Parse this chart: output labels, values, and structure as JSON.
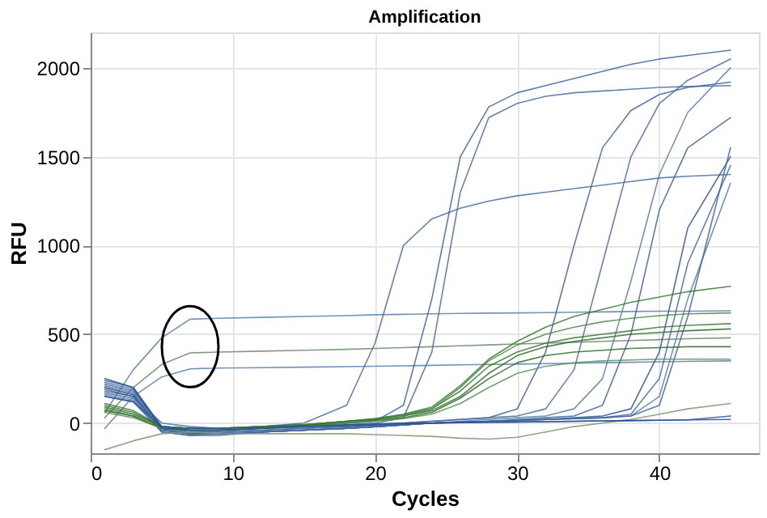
{
  "chart_data": {
    "type": "line",
    "title": "Amplification",
    "xlabel": "Cycles",
    "ylabel": "RFU",
    "x": [
      1,
      3,
      5,
      7,
      9,
      12,
      15,
      18,
      20,
      22,
      24,
      26,
      28,
      30,
      32,
      34,
      36,
      38,
      40,
      42,
      45
    ],
    "series": [
      {
        "color": "#5b7fa8",
        "values": [
          60,
          300,
          480,
          585,
          590,
          595,
          600,
          605,
          610,
          612,
          615,
          617,
          619,
          620,
          622,
          624,
          626,
          628,
          630,
          630,
          632
        ]
      },
      {
        "color": "#6a8a6a",
        "values": [
          30,
          200,
          330,
          395,
          400,
          405,
          410,
          415,
          420,
          425,
          430,
          435,
          440,
          445,
          450,
          455,
          460,
          465,
          470,
          475,
          480
        ]
      },
      {
        "color": "#5b7fa8",
        "values": [
          -30,
          150,
          260,
          305,
          310,
          312,
          315,
          318,
          320,
          322,
          325,
          328,
          330,
          332,
          335,
          337,
          340,
          342,
          345,
          347,
          350
        ]
      },
      {
        "color": "#4a6d9e",
        "values": [
          180,
          150,
          0,
          -20,
          -30,
          -20,
          0,
          100,
          450,
          1000,
          1150,
          1210,
          1250,
          1280,
          1300,
          1320,
          1340,
          1360,
          1380,
          1390,
          1400
        ]
      },
      {
        "color": "#3f65a0",
        "values": [
          220,
          180,
          -20,
          -40,
          -40,
          -30,
          -20,
          0,
          10,
          100,
          700,
          1500,
          1780,
          1860,
          1900,
          1940,
          1980,
          2020,
          2050,
          2070,
          2100
        ]
      },
      {
        "color": "#4a6d9e",
        "values": [
          200,
          160,
          -20,
          -40,
          -40,
          -30,
          -20,
          -10,
          0,
          30,
          400,
          1300,
          1720,
          1800,
          1840,
          1860,
          1870,
          1880,
          1890,
          1895,
          1900
        ]
      },
      {
        "color": "#3f65a0",
        "values": [
          240,
          200,
          -20,
          -50,
          -50,
          -40,
          -30,
          -20,
          -10,
          0,
          10,
          20,
          30,
          80,
          400,
          1000,
          1550,
          1760,
          1850,
          1890,
          1920
        ]
      },
      {
        "color": "#4a6d9e",
        "values": [
          230,
          190,
          -30,
          -50,
          -50,
          -40,
          -30,
          -20,
          -10,
          0,
          10,
          20,
          30,
          40,
          80,
          300,
          900,
          1500,
          1800,
          1930,
          2050
        ]
      },
      {
        "color": "#5b7fa8",
        "values": [
          210,
          170,
          -30,
          -60,
          -60,
          -50,
          -40,
          -30,
          -20,
          -10,
          0,
          10,
          20,
          30,
          40,
          80,
          250,
          800,
          1400,
          1750,
          2000
        ]
      },
      {
        "color": "#3f65a0",
        "values": [
          200,
          160,
          -40,
          -60,
          -60,
          -50,
          -40,
          -30,
          -20,
          -10,
          0,
          5,
          10,
          20,
          30,
          40,
          100,
          500,
          1200,
          1550,
          1720
        ]
      },
      {
        "color": "#2f5597",
        "values": [
          190,
          150,
          -40,
          -60,
          -60,
          -50,
          -40,
          -30,
          -20,
          -10,
          0,
          5,
          10,
          15,
          20,
          30,
          40,
          80,
          400,
          1100,
          1500
        ]
      },
      {
        "color": "#4a6d9e",
        "values": [
          170,
          140,
          -40,
          -60,
          -60,
          -50,
          -40,
          -30,
          -20,
          -10,
          0,
          5,
          10,
          15,
          20,
          25,
          30,
          50,
          250,
          900,
          1450
        ]
      },
      {
        "color": "#5b7fa8",
        "values": [
          160,
          130,
          -50,
          -70,
          -60,
          -50,
          -40,
          -30,
          -20,
          -10,
          0,
          5,
          10,
          15,
          20,
          25,
          30,
          40,
          150,
          700,
          1350
        ]
      },
      {
        "color": "#3f65a0",
        "values": [
          150,
          120,
          -50,
          -70,
          -70,
          -50,
          -40,
          -30,
          -20,
          -10,
          0,
          5,
          10,
          15,
          20,
          25,
          30,
          40,
          100,
          600,
          1550
        ]
      },
      {
        "color": "#3a7a35",
        "values": [
          100,
          60,
          -20,
          -30,
          -30,
          -20,
          -10,
          10,
          25,
          45,
          80,
          180,
          320,
          400,
          450,
          480,
          500,
          520,
          540,
          550,
          560
        ]
      },
      {
        "color": "#2f6b2c",
        "values": [
          90,
          50,
          -20,
          -30,
          -30,
          -20,
          -10,
          10,
          20,
          40,
          70,
          150,
          280,
          380,
          430,
          460,
          480,
          500,
          510,
          520,
          530
        ]
      },
      {
        "color": "#4d8a45",
        "values": [
          80,
          40,
          -30,
          -40,
          -40,
          -30,
          -15,
          5,
          20,
          40,
          80,
          200,
          350,
          440,
          500,
          540,
          570,
          590,
          605,
          615,
          620
        ]
      },
      {
        "color": "#3a7a35",
        "values": [
          110,
          70,
          -20,
          -30,
          -30,
          -20,
          -10,
          10,
          25,
          50,
          90,
          210,
          360,
          460,
          540,
          600,
          640,
          680,
          710,
          740,
          770
        ]
      },
      {
        "color": "#2f6b2c",
        "values": [
          70,
          40,
          -30,
          -40,
          -40,
          -30,
          -15,
          0,
          15,
          30,
          60,
          140,
          250,
          340,
          380,
          400,
          410,
          420,
          425,
          430,
          430
        ]
      },
      {
        "color": "#5d8f5a",
        "values": [
          60,
          30,
          -30,
          -40,
          -40,
          -30,
          -20,
          0,
          10,
          25,
          50,
          110,
          200,
          280,
          320,
          340,
          350,
          355,
          360,
          360,
          360
        ]
      },
      {
        "color": "#7a9670",
        "values": [
          -150,
          -100,
          -60,
          -50,
          -60,
          -60,
          -60,
          -60,
          -65,
          -70,
          -75,
          -85,
          -90,
          -80,
          -50,
          -20,
          0,
          20,
          50,
          80,
          110
        ]
      },
      {
        "color": "#1f4e8c",
        "values": [
          250,
          200,
          -30,
          -40,
          -40,
          -30,
          -20,
          -10,
          -5,
          0,
          0,
          2,
          4,
          6,
          8,
          10,
          12,
          14,
          16,
          18,
          20
        ]
      },
      {
        "color": "#2f5597",
        "values": [
          150,
          120,
          -20,
          -30,
          -30,
          -25,
          -20,
          -15,
          -10,
          -5,
          0,
          2,
          4,
          6,
          8,
          10,
          12,
          14,
          16,
          18,
          40
        ]
      }
    ],
    "xlim": [
      0,
      47
    ],
    "xticks": [
      0,
      10,
      20,
      30,
      40
    ],
    "ylim": [
      -170,
      2200
    ],
    "yticks": [
      0,
      500,
      1000,
      1500,
      2000
    ],
    "grid": true,
    "legend": false,
    "line_style": "solid",
    "marker": "none"
  }
}
